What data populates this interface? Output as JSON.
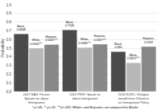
{
  "chart_data": {
    "type": "bar",
    "categories": [
      "2007 NAS: Person\nSpeaks on about Immigration",
      "2010 PRRI: Speak on about Immigration",
      "2016 NORC: Religion should have Influence\non Immigration Policy"
    ],
    "series": [
      {
        "name": "Black",
        "color": "#4a4a4a",
        "values": [
          0.6648,
          0.7106,
          0.46
        ],
        "value_labels": [
          "Black, 0.6648",
          "Black, 0.7106",
          "Black, 0.460"
        ]
      },
      {
        "name": "White",
        "color": "#b8b8b8",
        "values": [
          0.5004,
          0.508,
          0.3312
        ],
        "value_labels": [
          "White,\n0.5004***",
          "White,\n0.5080***",
          "White,\n0.3312***"
        ]
      },
      {
        "name": "Hispanic",
        "color": "#888888",
        "values": [
          0.5425,
          0.5457,
          0.5187
        ],
        "value_labels": [
          "Hispanic, 0.5425***",
          "Hispanic, 0.5457***",
          "Hispanic, 0.5187"
        ]
      }
    ],
    "ylabel": "Probability",
    "ylim": [
      0,
      1
    ],
    "yticks": [
      {
        "value": 0,
        "label": "0.0"
      },
      0.1,
      0.2,
      0.3,
      0.4,
      0.5,
      0.6,
      0.7,
      0.8,
      0.9,
      {
        "value": 1,
        "label": "1.0"
      }
    ],
    "grid": true,
    "legend": false,
    "data_labels": true,
    "annotations": [
      "* p<.05, ** p<.01, ***p<.001; Whites and Hispanics are compared to Blacks"
    ]
  }
}
